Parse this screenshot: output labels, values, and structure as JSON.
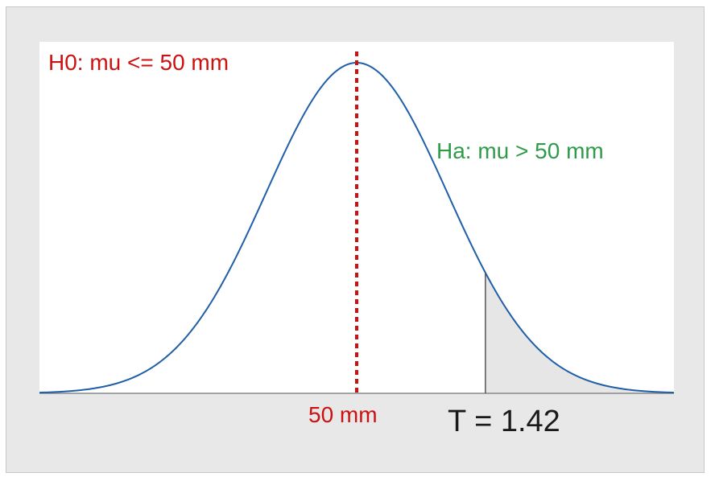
{
  "chart_data": {
    "type": "area",
    "distribution": "t-distribution density curve",
    "curve_color": "#1f5fa8",
    "shade_color": "#e6e6e6",
    "h0_label": "H0: mu <= 50 mm",
    "ha_label": "Ha: mu > 50 mm",
    "mean_label": "50 mm",
    "t_label": "T = 1.42",
    "h0_value": 50,
    "t_statistic": 1.42,
    "x_range_sd": [
      -3.5,
      3.5
    ],
    "shaded_region": "right tail beyond T",
    "colors": {
      "h0": "#cc1111",
      "ha": "#2e9b4b",
      "mean_line": "#cc1111",
      "t_line": "#555555"
    }
  }
}
